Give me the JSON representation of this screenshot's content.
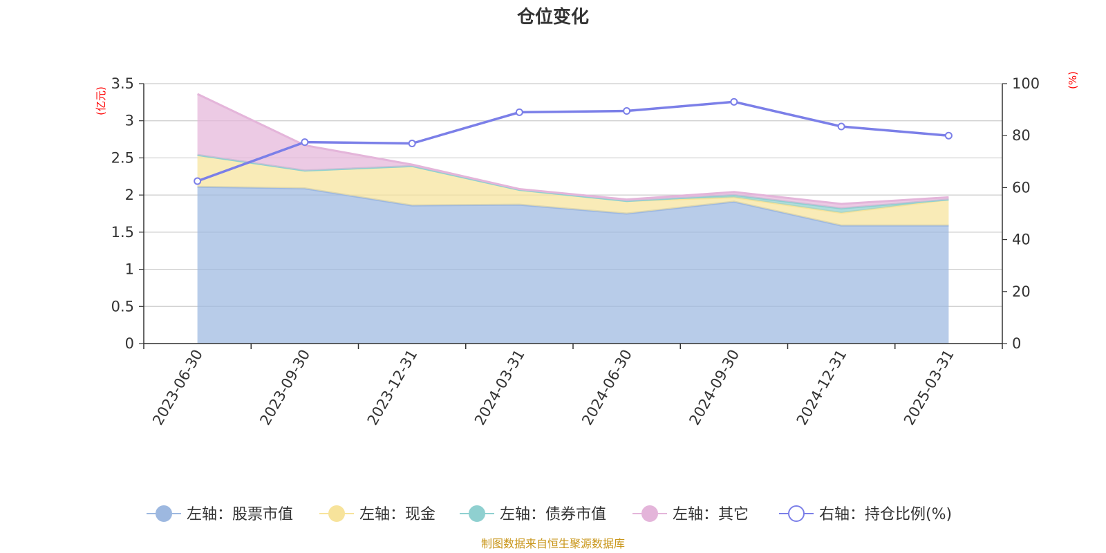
{
  "colors": {
    "stock": "#9db8e0",
    "cash": "#f7e39b",
    "bond": "#8fd0d0",
    "other": "#e4b5da",
    "ratio": "#7b7fe8"
  },
  "chart_data": {
    "type": "area",
    "title": "仓位变化",
    "left_unit": "(亿元)",
    "right_unit": "(%)",
    "categories": [
      "2023-06-30",
      "2023-09-30",
      "2023-12-31",
      "2024-03-31",
      "2024-06-30",
      "2024-09-30",
      "2024-12-31",
      "2025-03-31"
    ],
    "left_axis": {
      "min": 0,
      "max": 3.5,
      "ticks": [
        "0",
        "0.5",
        "1",
        "1.5",
        "2",
        "2.5",
        "3",
        "3.5"
      ]
    },
    "right_axis": {
      "min": 0,
      "max": 100,
      "ticks": [
        "0",
        "20",
        "40",
        "60",
        "80",
        "100"
      ]
    },
    "stacked": true,
    "grid": true,
    "legend_position": "bottom",
    "series": [
      {
        "key": "stock",
        "name": "左轴：股票市值",
        "axis": "left",
        "values": [
          2.11,
          2.09,
          1.86,
          1.87,
          1.75,
          1.91,
          1.59,
          1.59
        ]
      },
      {
        "key": "cash",
        "name": "左轴：现金",
        "axis": "left",
        "values": [
          0.43,
          0.24,
          0.53,
          0.2,
          0.17,
          0.06,
          0.17,
          0.35
        ]
      },
      {
        "key": "bond",
        "name": "左轴：债券市值",
        "axis": "left",
        "values": [
          0,
          0,
          0,
          0,
          0,
          0.03,
          0.06,
          0
        ]
      },
      {
        "key": "other",
        "name": "左轴：其它",
        "axis": "left",
        "values": [
          0.82,
          0.34,
          0.02,
          0.01,
          0.02,
          0.04,
          0.06,
          0.03
        ]
      },
      {
        "key": "ratio",
        "name": "右轴：持仓比例(%)",
        "axis": "right",
        "type": "line",
        "values": [
          62.5,
          77.5,
          77.0,
          89.0,
          89.5,
          93.0,
          83.5,
          80.0
        ]
      }
    ]
  },
  "source_text": "制图数据来自恒生聚源数据库"
}
